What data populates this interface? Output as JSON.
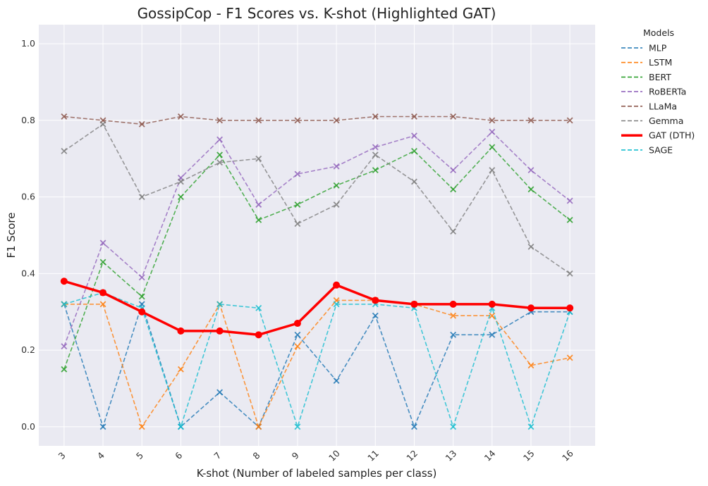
{
  "chart_data": {
    "type": "line",
    "title": "GossipCop - F1 Scores vs. K-shot (Highlighted GAT)",
    "xlabel": "K-shot (Number of labeled samples per class)",
    "ylabel": "F1 Score",
    "x": [
      3,
      4,
      5,
      6,
      7,
      8,
      9,
      10,
      11,
      12,
      13,
      14,
      15,
      16
    ],
    "ylim": [
      -0.05,
      1.05
    ],
    "yticks": [
      "0.0",
      "0.2",
      "0.4",
      "0.6",
      "0.8",
      "1.0"
    ],
    "grid": true,
    "legend": {
      "title": "Models",
      "position": "outside-right"
    },
    "series": [
      {
        "name": "MLP",
        "color": "#1f77b4",
        "style": "dashed",
        "marker": "x",
        "values": [
          0.32,
          0.0,
          0.32,
          0.0,
          0.09,
          0.0,
          0.24,
          0.12,
          0.29,
          0.0,
          0.24,
          0.24,
          0.3,
          0.3
        ]
      },
      {
        "name": "LSTM",
        "color": "#ff7f0e",
        "style": "dashed",
        "marker": "x",
        "values": [
          0.32,
          0.32,
          0.0,
          0.15,
          0.32,
          0.0,
          0.21,
          0.33,
          0.33,
          0.32,
          0.29,
          0.29,
          0.16,
          0.18
        ]
      },
      {
        "name": "BERT",
        "color": "#2ca02c",
        "style": "dashed",
        "marker": "x",
        "values": [
          0.15,
          0.43,
          0.34,
          0.6,
          0.71,
          0.54,
          0.58,
          0.63,
          0.67,
          0.72,
          0.62,
          0.73,
          0.62,
          0.54
        ]
      },
      {
        "name": "RoBERTa",
        "color": "#9467bd",
        "style": "dashed",
        "marker": "x",
        "values": [
          0.21,
          0.48,
          0.39,
          0.65,
          0.75,
          0.58,
          0.66,
          0.68,
          0.73,
          0.76,
          0.67,
          0.77,
          0.67,
          0.59
        ]
      },
      {
        "name": "LLaMa",
        "color": "#8c564b",
        "style": "dashed",
        "marker": "x",
        "values": [
          0.81,
          0.8,
          0.79,
          0.81,
          0.8,
          0.8,
          0.8,
          0.8,
          0.81,
          0.81,
          0.81,
          0.8,
          0.8,
          0.8
        ]
      },
      {
        "name": "Gemma",
        "color": "#7f7f7f",
        "style": "dashed",
        "marker": "x",
        "values": [
          0.72,
          0.79,
          0.6,
          0.64,
          0.69,
          0.7,
          0.53,
          0.58,
          0.71,
          0.64,
          0.51,
          0.67,
          0.47,
          0.4
        ]
      },
      {
        "name": "GAT (DTH)",
        "color": "#ff0000",
        "style": "solid",
        "marker": "circle",
        "highlight": true,
        "values": [
          0.38,
          0.35,
          0.3,
          0.25,
          0.25,
          0.24,
          0.27,
          0.37,
          0.33,
          0.32,
          0.32,
          0.32,
          0.31,
          0.31
        ]
      },
      {
        "name": "SAGE",
        "color": "#17becf",
        "style": "dashed",
        "marker": "x",
        "values": [
          0.32,
          0.35,
          0.31,
          0.0,
          0.32,
          0.31,
          0.0,
          0.32,
          0.32,
          0.31,
          0.0,
          0.31,
          0.0,
          0.3
        ]
      }
    ]
  }
}
